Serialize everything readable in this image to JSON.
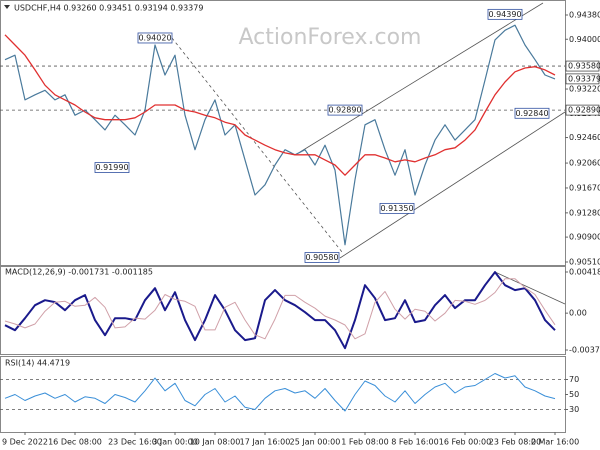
{
  "chart_data": [
    {
      "type": "line",
      "title": "USDCHF,H4  0.93260 0.93451 0.93194 0.93379",
      "watermark": "ActionForex.com",
      "categories": [
        null,
        null,
        "9 Dec 2022",
        null,
        null,
        null,
        null,
        "16 Dec 08:00",
        null,
        null,
        null,
        null,
        null,
        "23 Dec 16:00",
        null,
        null,
        null,
        "3 Jan 00:00",
        null,
        null,
        null,
        "10 Jan 08:00",
        null,
        null,
        null,
        null,
        "17 Jan 16:00",
        null,
        null,
        null,
        null,
        "25 Jan 00:00",
        null,
        null,
        null,
        null,
        "1 Feb 08:00",
        null,
        null,
        null,
        null,
        "8 Feb 16:00",
        null,
        null,
        null,
        null,
        "16 Feb 00:00",
        null,
        null,
        null,
        null,
        "23 Feb 08:00",
        null,
        null,
        null,
        "2 Mar 16:00"
      ],
      "series": [
        {
          "color": "#4a7a9c",
          "values": [
            0.9368,
            0.9375,
            0.9305,
            0.9313,
            0.932,
            0.9305,
            0.9313,
            0.9281,
            0.9289,
            0.9274,
            0.9258,
            0.9281,
            0.9266,
            0.925,
            0.9289,
            0.9391,
            0.9344,
            0.9375,
            0.9281,
            0.9227,
            0.9274,
            0.9305,
            0.925,
            0.9266,
            0.9211,
            0.9156,
            0.9172,
            0.9203,
            0.9227,
            0.9219,
            0.9227,
            0.9203,
            0.9234,
            0.9195,
            0.9078,
            0.918,
            0.9266,
            0.9274,
            0.9227,
            0.9187,
            0.9227,
            0.9156,
            0.9203,
            0.9242,
            0.9266,
            0.9242,
            0.9258,
            0.9274,
            0.9336,
            0.9399,
            0.9414,
            0.9422,
            0.9391,
            0.9368,
            0.9344,
            0.93379
          ]
        },
        {
          "color": "#e03030",
          "values": [
            0.9407,
            0.9391,
            0.9375,
            0.9352,
            0.9328,
            0.9313,
            0.9305,
            0.9297,
            0.9286,
            0.9277,
            0.9274,
            0.9274,
            0.9274,
            0.9277,
            0.9286,
            0.9297,
            0.9297,
            0.9297,
            0.9289,
            0.9286,
            0.9281,
            0.9277,
            0.927,
            0.9266,
            0.925,
            0.9242,
            0.9234,
            0.9227,
            0.9222,
            0.9219,
            0.9219,
            0.9219,
            0.9211,
            0.9203,
            0.9187,
            0.9203,
            0.9219,
            0.9219,
            0.9214,
            0.9208,
            0.9211,
            0.9208,
            0.9214,
            0.9219,
            0.9227,
            0.923,
            0.9242,
            0.9258,
            0.9286,
            0.9313,
            0.9333,
            0.9349,
            0.9355,
            0.9357,
            0.9352,
            0.9344
          ]
        }
      ],
      "ylim": [
        0.90463,
        0.94615
      ],
      "yticks": [
        {
          "value": 0.9438,
          "label": "0.94380"
        },
        {
          "value": 0.94,
          "label": "0.94000"
        },
        {
          "value": 0.9322,
          "label": "0.93220"
        },
        {
          "value": 0.9284,
          "label": "0.92840"
        },
        {
          "value": 0.9246,
          "label": "0.92460"
        },
        {
          "value": 0.9206,
          "label": "0.92060"
        },
        {
          "value": 0.9167,
          "label": "0.91670"
        },
        {
          "value": 0.9128,
          "label": "0.91280"
        },
        {
          "value": 0.909,
          "label": "0.90900"
        },
        {
          "value": 0.9051,
          "label": "0.90510"
        }
      ],
      "levels": [
        {
          "value": 0.9358,
          "label": "0.93580"
        },
        {
          "value": 0.9289,
          "label": "0.92890"
        }
      ],
      "last_price": {
        "value": 0.93379,
        "label": "0.93379"
      },
      "annotations": [
        {
          "value": 0.9439,
          "label": "0.94390"
        },
        {
          "value": 0.9402,
          "label": "0.94020"
        },
        {
          "value": 0.9289,
          "label": "0.92890"
        },
        {
          "value": 0.9199,
          "label": "0.91990"
        },
        {
          "value": 0.9135,
          "label": "0.91350"
        },
        {
          "value": 0.9058,
          "label": "0.90580"
        },
        {
          "value": 0.9284,
          "label": "0.92840"
        }
      ]
    },
    {
      "type": "line",
      "title": "MACD(12,26,9) -0.001731 -0.001185",
      "series": [
        {
          "color": "#1a1a8c",
          "values": [
            -0.00122,
            -0.00173,
            -0.00051,
            0.00081,
            0.00132,
            0.00112,
            0.0003,
            0.00132,
            0.00183,
            -0.00071,
            -0.00224,
            -0.00051,
            -0.00051,
            -0.00071,
            0.00132,
            0.00254,
            0.0003,
            0.00213,
            -0.00071,
            -0.00274,
            -0.00071,
            0.00183,
            0.0003,
            -0.00173,
            -0.00274,
            -0.00254,
            0.00132,
            0.00234,
            0.00132,
            0.00081,
            0.0001,
            -0.00071,
            -0.00071,
            -0.00173,
            -0.00356,
            -0.00071,
            0.00284,
            0.00152,
            -0.00071,
            -0.00051,
            0.00132,
            -0.00091,
            -0.00071,
            0.00081,
            0.00183,
            0.00051,
            0.00132,
            0.00132,
            0.00284,
            0.00417,
            0.00284,
            0.00234,
            0.00254,
            0.00132,
            -0.00071,
            -0.001731
          ]
        },
        {
          "color": "#d0a0a8",
          "values": [
            -0.0008,
            -0.0011,
            -0.0015,
            -0.0011,
            0.0002,
            0.0011,
            0.0012,
            0.0007,
            0.0008,
            0.0016,
            0.0006,
            -0.0015,
            -0.0014,
            -0.0005,
            -0.0006,
            0.0003,
            0.0019,
            0.0014,
            0.0012,
            0.0007,
            -0.0017,
            -0.0017,
            0.0006,
            0.0011,
            -0.0007,
            -0.0022,
            -0.0026,
            -0.0006,
            0.0018,
            0.0018,
            0.0011,
            0.0005,
            -0.0003,
            -0.0007,
            -0.0012,
            -0.0026,
            -0.0021,
            0.0011,
            0.0022,
            0.0004,
            -0.0006,
            0.0004,
            0.0002,
            -0.0008,
            0,
            0.0013,
            0.0012,
            0.0009,
            0.0013,
            0.0021,
            0.0035,
            0.0035,
            0.0026,
            0.0019,
            0.0003,
            -0.001185
          ]
        }
      ],
      "ylim": [
        -0.00425,
        0.00479
      ],
      "yticks": [
        {
          "value": 0.00418,
          "label": "0.00418"
        },
        {
          "value": 0,
          "label": "0.00"
        },
        -0.003744
      ]
    },
    {
      "type": "line",
      "title": "RSI(14) 44.4719",
      "series": [
        {
          "color": "#3a8fd8",
          "values": [
            45,
            50,
            42,
            48,
            52,
            45,
            50,
            40,
            47,
            45,
            38,
            50,
            46,
            40,
            55,
            72,
            55,
            65,
            42,
            35,
            50,
            58,
            40,
            48,
            33,
            30,
            45,
            55,
            58,
            52,
            55,
            45,
            58,
            42,
            28,
            50,
            68,
            62,
            48,
            40,
            55,
            38,
            50,
            60,
            65,
            52,
            60,
            62,
            70,
            78,
            72,
            75,
            60,
            55,
            48,
            44.4719
          ]
        }
      ],
      "ylim": [
        0,
        100
      ],
      "yticks": [
        70,
        50,
        30
      ],
      "levels": [
        70,
        30
      ]
    }
  ]
}
